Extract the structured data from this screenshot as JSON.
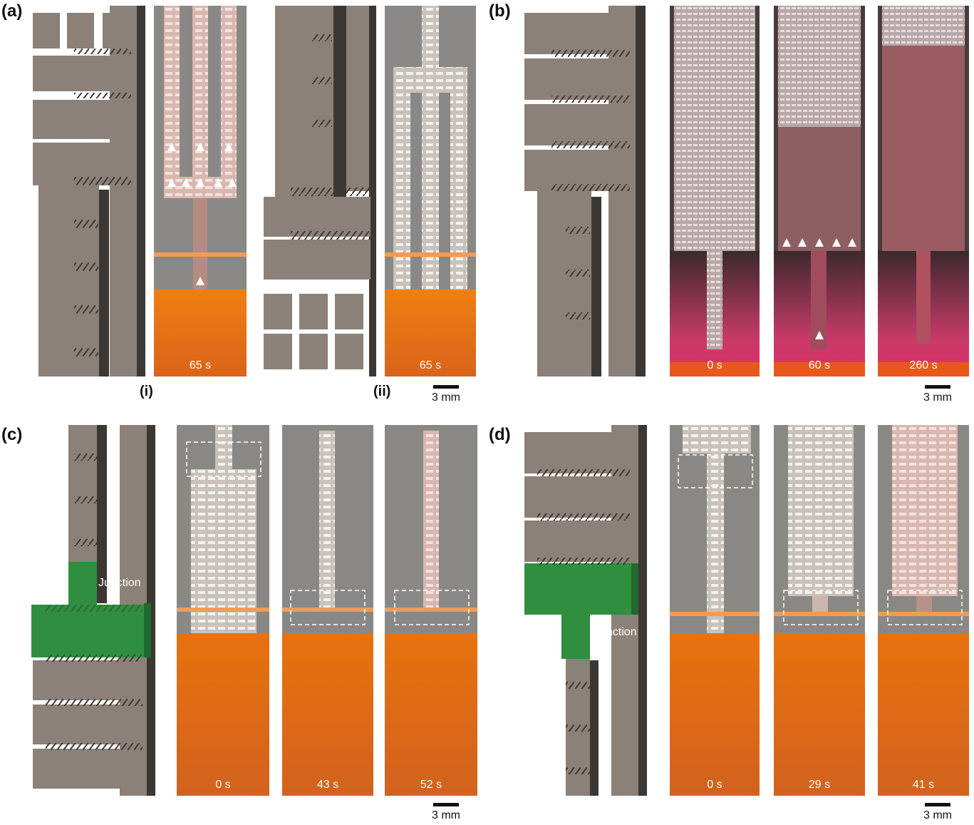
{
  "panels": {
    "a": {
      "label": "(a)",
      "sub_i": "(i)",
      "sub_ii": "(ii)",
      "time_i": "65 s",
      "time_ii": "65 s"
    },
    "b": {
      "label": "(b)",
      "times": [
        "0 s",
        "60 s",
        "260 s"
      ]
    },
    "c": {
      "label": "(c)",
      "junction": "Junction",
      "times": [
        "0 s",
        "43 s",
        "52 s"
      ]
    },
    "d": {
      "label": "(d)",
      "junction": "Junction",
      "times": [
        "0 s",
        "29 s",
        "41 s"
      ]
    }
  },
  "scale_bar": "3 mm",
  "colors": {
    "cad_gray": "#8b8178",
    "cad_dark": "#3d3733",
    "junction_green": "#2f8f3e",
    "liquid_orange": "#e07a1a",
    "liquid_red": "#e0306a",
    "glass": "#8a8884"
  }
}
